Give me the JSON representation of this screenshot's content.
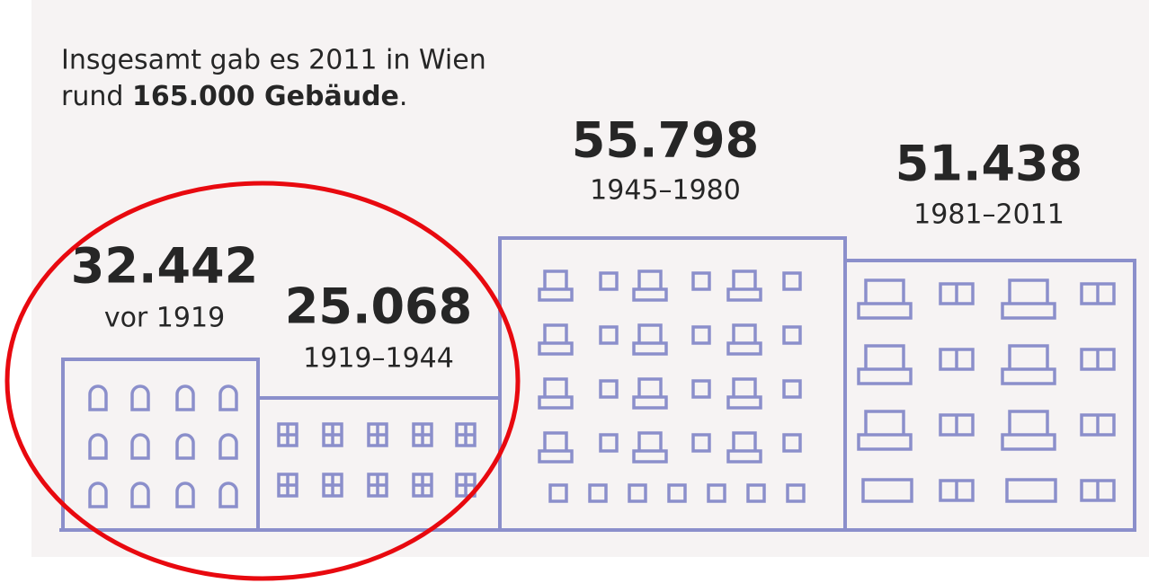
{
  "intro": {
    "line1": "Insgesamt gab es 2011 in Wien",
    "line2_start": "rund",
    "line2_bold": "165.000 Gebäude",
    "line2_end": "."
  },
  "buildings": [
    {
      "count": "32.442",
      "period": "vor 1919"
    },
    {
      "count": "25.068",
      "period": "1919–1944"
    },
    {
      "count": "55.798",
      "period": "1945–1980"
    },
    {
      "count": "51.438",
      "period": "1981–2011"
    }
  ]
}
